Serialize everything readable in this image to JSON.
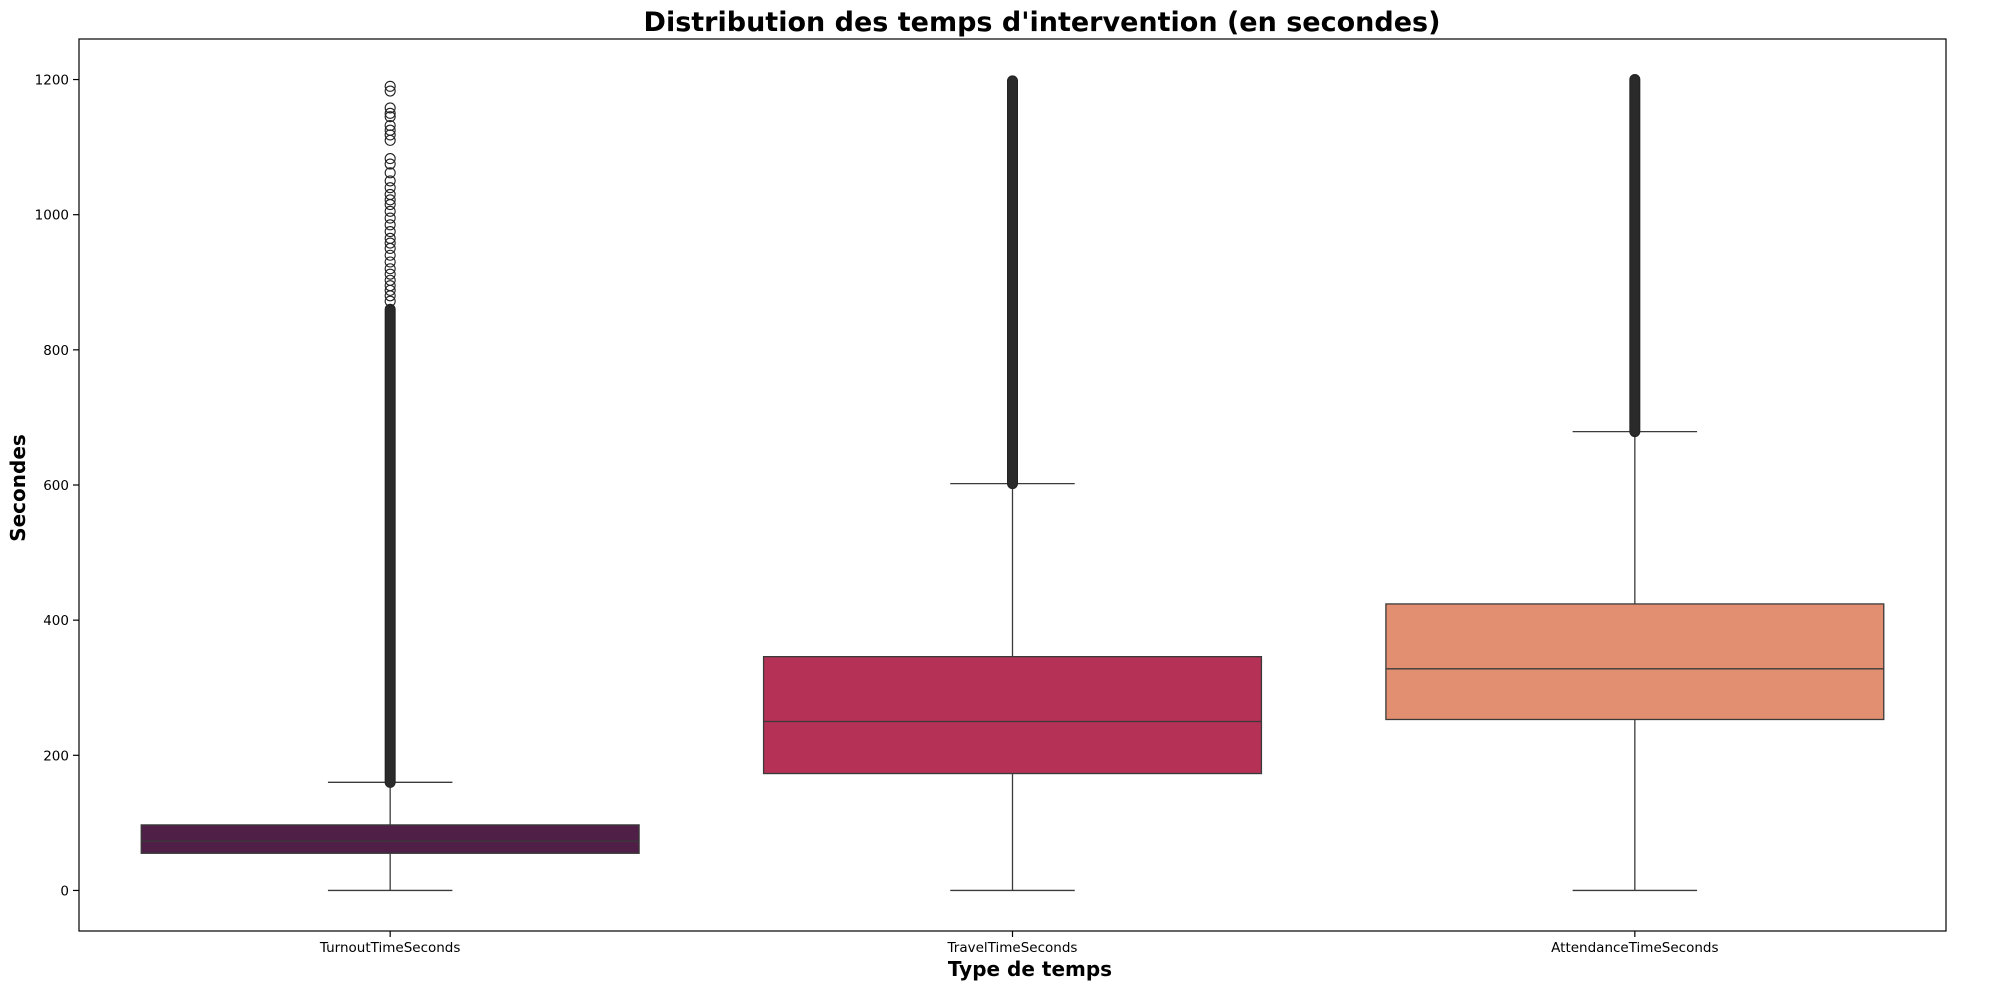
{
  "chart_data": {
    "type": "box",
    "title": "Distribution des temps d'intervention (en secondes)",
    "xlabel": "Type de temps",
    "ylabel": "Secondes",
    "ylim": [
      -60,
      1260
    ],
    "yticks": [
      0,
      200,
      400,
      600,
      800,
      1000,
      1200
    ],
    "categories": [
      "TurnoutTimeSeconds",
      "TravelTimeSeconds",
      "AttendanceTimeSeconds"
    ],
    "grid": false,
    "series": [
      {
        "name": "TurnoutTimeSeconds",
        "color": "#4f1f47",
        "whisker_low": 0,
        "q1": 55,
        "median": 73,
        "q3": 97,
        "whisker_high": 160,
        "outlier_dense_range": [
          160,
          860
        ],
        "outliers_sparse": [
          872,
          880,
          888,
          895,
          903,
          912,
          920,
          930,
          940,
          950,
          958,
          965,
          975,
          985,
          995,
          1005,
          1015,
          1022,
          1030,
          1040,
          1050,
          1062,
          1075,
          1083,
          1110,
          1118,
          1125,
          1132,
          1145,
          1150,
          1158,
          1183,
          1190
        ]
      },
      {
        "name": "TravelTimeSeconds",
        "color": "#b53156",
        "whisker_low": 0,
        "q1": 173,
        "median": 250,
        "q3": 346,
        "whisker_high": 602,
        "outlier_dense_range": [
          602,
          1198
        ],
        "outliers_sparse": []
      },
      {
        "name": "AttendanceTimeSeconds",
        "color": "#e18f70",
        "whisker_low": 0,
        "q1": 253,
        "median": 328,
        "q3": 424,
        "whisker_high": 679,
        "outlier_dense_range": [
          679,
          1200
        ],
        "outliers_sparse": []
      }
    ]
  }
}
